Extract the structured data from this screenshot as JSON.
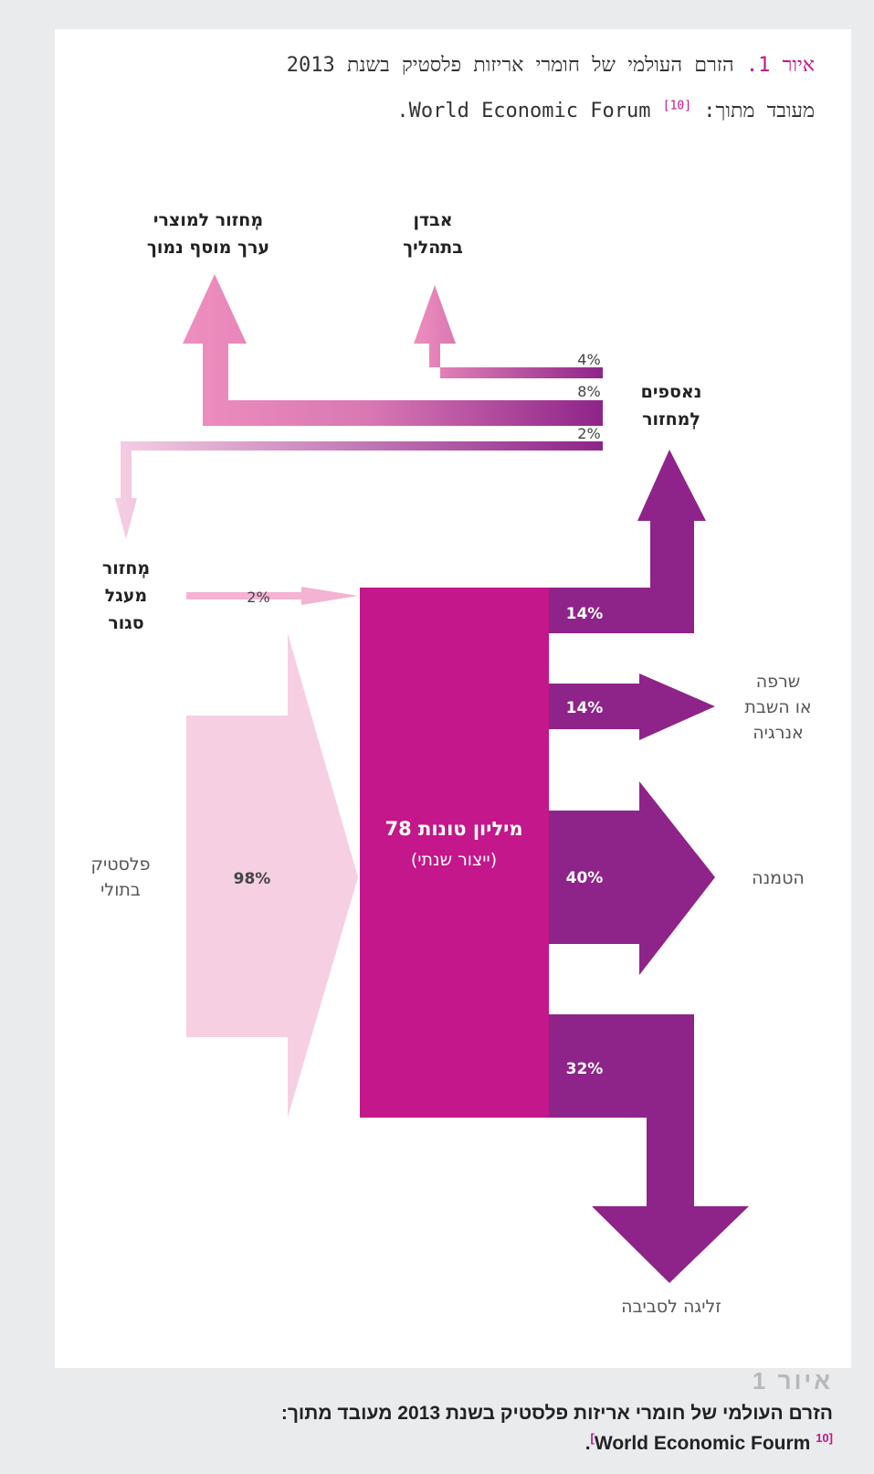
{
  "header": {
    "title_lead": "איור 1.",
    "title_rest": " הזרם העולמי של חומרי אריזות פלסטיק בשנת 2013",
    "source_prefix": "מעובד מתוך: World Economic Forum ",
    "source_ref": "[10]",
    "source_suffix": "."
  },
  "flow": {
    "center_title": "78 מיליון טונות",
    "center_subtitle": "(ייצור שנתי)",
    "inputs": [
      {
        "label": [
          "פלסטיק",
          "בתולי"
        ],
        "percent": "98%",
        "value": 98
      },
      {
        "label": [
          "מְחזור",
          "מעגל",
          "סגור"
        ],
        "percent": "2%",
        "value": 2
      }
    ],
    "outputs": [
      {
        "label": [
          "נאספים",
          "לְמחזור"
        ],
        "percent": "14%",
        "value": 14
      },
      {
        "label": [
          "שרפה",
          "או השבת",
          "אנרגיה"
        ],
        "percent": "14%",
        "value": 14
      },
      {
        "label": [
          "הטמנה"
        ],
        "percent": "40%",
        "value": 40
      },
      {
        "label": [
          "זליגה לסביבה"
        ],
        "percent": "32%",
        "value": 32
      }
    ],
    "recycling": [
      {
        "label": [
          "אבדן",
          "בתהליך"
        ],
        "percent": "4%",
        "value": 4
      },
      {
        "label": [
          "מְחזור למוצרי",
          "ערך מוסף נמוך"
        ],
        "percent": "8%",
        "value": 8
      },
      {
        "label": [],
        "percent": "2%",
        "value": 2
      }
    ]
  },
  "colors": {
    "virgin": "#f6cfe3",
    "center": "#c3178b",
    "output": "#8e2489",
    "recycle_light": "#ef8fbe",
    "closed_loop": "#f4b3d2"
  },
  "caption": {
    "figure_label": "איור 1",
    "text_line1": "הזרם העולמי של חומרי אריזות פלסטיק בשנת 2013 מעובד מתוך:",
    "ref": "[10",
    "text_line2": "World Economic Fourm",
    "bracket": "]",
    "period": "."
  }
}
